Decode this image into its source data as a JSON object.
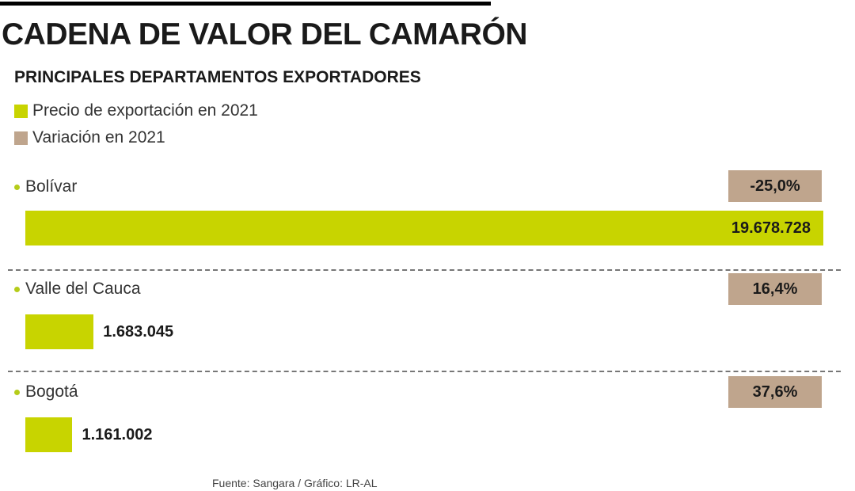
{
  "title": "CADENA DE VALOR DEL CAMARÓN",
  "subtitle": "PRINCIPALES DEPARTAMENTOS EXPORTADORES",
  "legend": [
    {
      "label": "Precio de exportación en 2021",
      "color": "#c8d400"
    },
    {
      "label": "Variación en 2021",
      "color": "#bfa58d"
    }
  ],
  "colors": {
    "bar": "#c8d400",
    "variation": "#bfa58d",
    "dot": "#b5cc1a"
  },
  "chart_data": {
    "type": "bar",
    "orientation": "horizontal",
    "title": "CADENA DE VALOR DEL CAMARÓN",
    "subtitle": "PRINCIPALES DEPARTAMENTOS EXPORTADORES",
    "categories": [
      "Bolívar",
      "Valle del Cauca",
      "Bogotá"
    ],
    "series": [
      {
        "name": "Precio de exportación en 2021",
        "values": [
          19678728,
          1683045,
          1161002
        ],
        "labels": [
          "19.678.728",
          "1.683.045",
          "1.161.002"
        ]
      },
      {
        "name": "Variación en 2021",
        "values": [
          -25.0,
          16.4,
          37.6
        ],
        "labels": [
          "-25,0%",
          "16,4%",
          "37,6%"
        ]
      }
    ]
  },
  "source": "Fuente: Sangara / Gráfico: LR-AL"
}
